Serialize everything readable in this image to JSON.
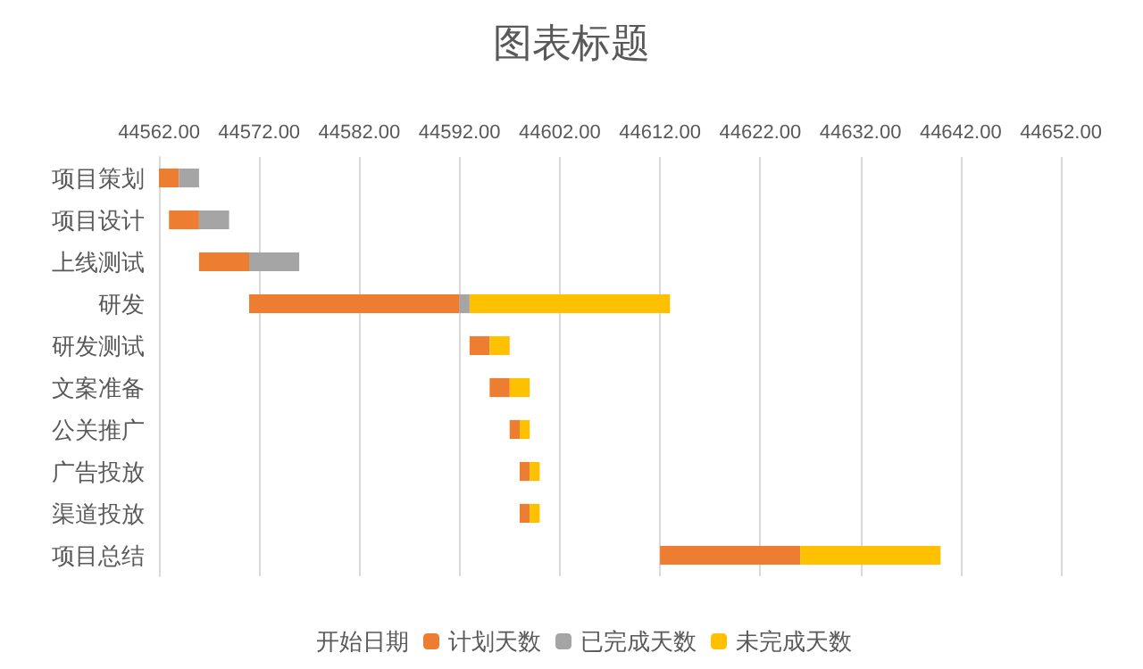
{
  "chart_data": {
    "type": "bar",
    "orientation": "horizontal",
    "title": "图表标题",
    "categories": [
      "项目策划",
      "项目设计",
      "上线测试",
      "研发",
      "研发测试",
      "文案准备",
      "公关推广",
      "广告投放",
      "渠道投放",
      "项目总结"
    ],
    "series": [
      {
        "name": "开始日期",
        "color": null,
        "values": [
          null,
          null,
          null,
          null,
          null,
          null,
          null,
          null,
          null,
          null
        ]
      },
      {
        "name": "计划天数",
        "color": "#ed7d31",
        "base": [
          44562,
          44563,
          44566,
          44571,
          44593,
          44595,
          44597,
          44598,
          44598,
          44612
        ],
        "values": [
          2,
          3,
          5,
          21,
          2,
          2,
          1,
          1,
          1,
          14
        ]
      },
      {
        "name": "已完成天数",
        "color": "#a5a5a5",
        "base": [
          44564,
          44566,
          44571,
          44592,
          null,
          null,
          null,
          null,
          null,
          null
        ],
        "values": [
          2,
          3,
          5,
          1,
          null,
          null,
          null,
          null,
          null,
          null
        ]
      },
      {
        "name": "未完成天数",
        "color": "#ffc000",
        "base": [
          null,
          null,
          null,
          44593,
          44595,
          44597,
          44598,
          44599,
          44599,
          44626
        ],
        "values": [
          null,
          null,
          null,
          20,
          2,
          2,
          1,
          1,
          1,
          14
        ]
      }
    ],
    "xlim": [
      44562,
      44652
    ],
    "xticks": [
      {
        "value": 44562,
        "label": "44562.00"
      },
      {
        "value": 44572,
        "label": "44572.00"
      },
      {
        "value": 44582,
        "label": "44582.00"
      },
      {
        "value": 44592,
        "label": "44592.00"
      },
      {
        "value": 44602,
        "label": "44602.00"
      },
      {
        "value": 44612,
        "label": "44612.00"
      },
      {
        "value": 44622,
        "label": "44622.00"
      },
      {
        "value": 44632,
        "label": "44632.00"
      },
      {
        "value": 44642,
        "label": "44642.00"
      },
      {
        "value": 44652,
        "label": "44652.00"
      }
    ],
    "grid": "x",
    "legend": "bottom"
  }
}
